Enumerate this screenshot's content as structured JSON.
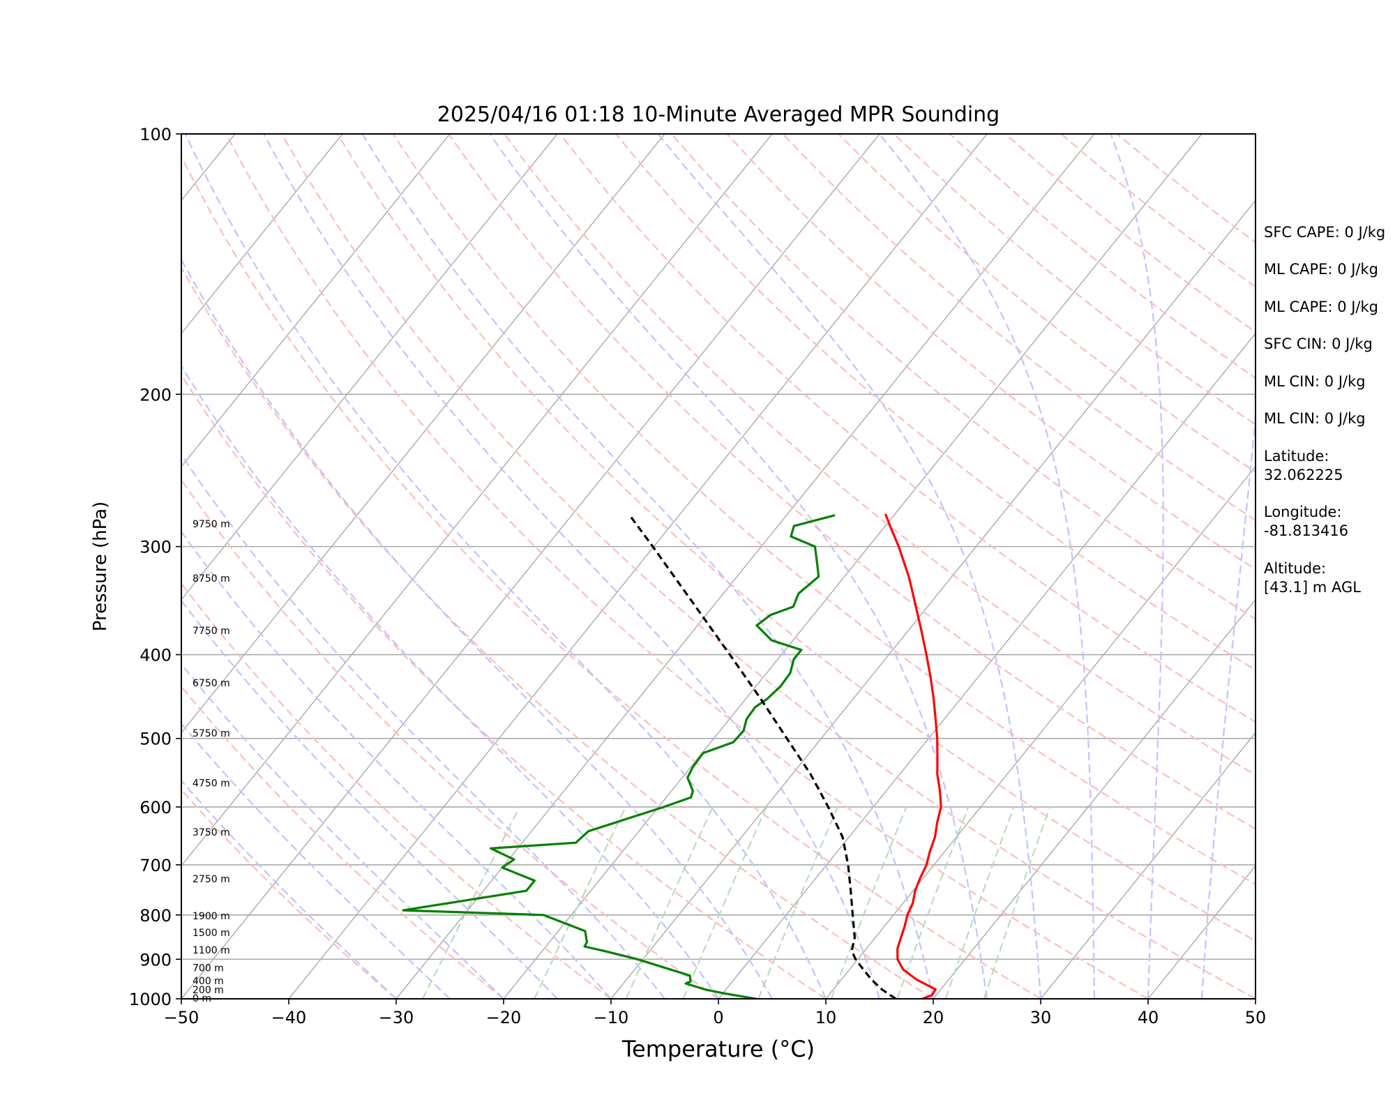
{
  "chart_data": {
    "type": "line",
    "title": "2025/04/16 01:18 10-Minute Averaged MPR Sounding",
    "xlabel": "Temperature (°C)",
    "ylabel": "Pressure (hPa)",
    "xlim": [
      -50,
      50
    ],
    "ylim": [
      1000,
      100
    ],
    "y_scale": "log",
    "skew_temperature": true,
    "grid": true,
    "x_ticks": [
      "−50",
      "−40",
      "−30",
      "−20",
      "−10",
      "0",
      "10",
      "20",
      "30",
      "40",
      "50"
    ],
    "y_ticks": [
      "100",
      "200",
      "300",
      "400",
      "500",
      "600",
      "700",
      "800",
      "900",
      "1000"
    ],
    "y_tick_values": [
      100,
      200,
      300,
      400,
      500,
      600,
      700,
      800,
      900,
      1000
    ],
    "series": [
      {
        "role": "temperature",
        "color": "#ff0000",
        "style": "solid",
        "points": [
          [
            1000,
            19.0
          ],
          [
            990,
            19.6
          ],
          [
            975,
            19.5
          ],
          [
            950,
            17.0
          ],
          [
            925,
            15.0
          ],
          [
            900,
            13.7
          ],
          [
            875,
            12.9
          ],
          [
            850,
            12.4
          ],
          [
            825,
            11.9
          ],
          [
            800,
            11.3
          ],
          [
            775,
            10.9
          ],
          [
            750,
            10.2
          ],
          [
            725,
            9.7
          ],
          [
            700,
            9.3
          ],
          [
            675,
            8.6
          ],
          [
            650,
            8.0
          ],
          [
            625,
            7.1
          ],
          [
            600,
            6.3
          ],
          [
            575,
            5.0
          ],
          [
            550,
            3.5
          ],
          [
            525,
            2.2
          ],
          [
            500,
            0.8
          ],
          [
            475,
            -0.8
          ],
          [
            450,
            -2.5
          ],
          [
            425,
            -4.4
          ],
          [
            400,
            -6.5
          ],
          [
            375,
            -8.8
          ],
          [
            350,
            -11.3
          ],
          [
            325,
            -14.0
          ],
          [
            300,
            -17.2
          ],
          [
            285,
            -19.4
          ],
          [
            275,
            -20.9
          ]
        ]
      },
      {
        "role": "dewpoint",
        "color": "#008000",
        "style": "solid",
        "points": [
          [
            1000,
            3.5
          ],
          [
            985,
            0.0
          ],
          [
            975,
            -2.0
          ],
          [
            960,
            -4.2
          ],
          [
            955,
            -3.9
          ],
          [
            940,
            -4.4
          ],
          [
            900,
            -10.5
          ],
          [
            880,
            -14.3
          ],
          [
            870,
            -16.4
          ],
          [
            860,
            -16.5
          ],
          [
            835,
            -17.5
          ],
          [
            800,
            -22.6
          ],
          [
            790,
            -36.0
          ],
          [
            750,
            -26.0
          ],
          [
            730,
            -26.0
          ],
          [
            705,
            -30.0
          ],
          [
            690,
            -29.5
          ],
          [
            670,
            -32.5
          ],
          [
            660,
            -25.0
          ],
          [
            640,
            -24.7
          ],
          [
            600,
            -19.5
          ],
          [
            585,
            -17.7
          ],
          [
            575,
            -18.0
          ],
          [
            555,
            -19.5
          ],
          [
            540,
            -19.8
          ],
          [
            520,
            -19.9
          ],
          [
            505,
            -17.9
          ],
          [
            490,
            -17.8
          ],
          [
            475,
            -18.4
          ],
          [
            460,
            -18.5
          ],
          [
            450,
            -18.0
          ],
          [
            435,
            -17.7
          ],
          [
            420,
            -17.8
          ],
          [
            405,
            -18.5
          ],
          [
            395,
            -18.5
          ],
          [
            385,
            -22.0
          ],
          [
            370,
            -24.5
          ],
          [
            360,
            -24.0
          ],
          [
            352,
            -22.5
          ],
          [
            340,
            -23.0
          ],
          [
            325,
            -22.4
          ],
          [
            315,
            -23.4
          ],
          [
            300,
            -25.0
          ],
          [
            292,
            -28.0
          ],
          [
            284,
            -28.5
          ],
          [
            276,
            -25.5
          ]
        ]
      },
      {
        "role": "parcel",
        "color": "#000000",
        "style": "dashed",
        "points": [
          [
            1000,
            16.5
          ],
          [
            975,
            14.5
          ],
          [
            950,
            12.8
          ],
          [
            925,
            11.3
          ],
          [
            900,
            9.8
          ],
          [
            880,
            8.8
          ],
          [
            850,
            8.1
          ],
          [
            800,
            6.2
          ],
          [
            750,
            4.2
          ],
          [
            700,
            2.0
          ],
          [
            650,
            -0.6
          ],
          [
            600,
            -4.2
          ],
          [
            550,
            -8.3
          ],
          [
            500,
            -13.2
          ],
          [
            450,
            -18.6
          ],
          [
            400,
            -24.8
          ],
          [
            350,
            -31.9
          ],
          [
            300,
            -40.1
          ],
          [
            275,
            -44.8
          ]
        ]
      }
    ],
    "height_labels": [
      {
        "text": "0 m",
        "p": 1000
      },
      {
        "text": "200 m",
        "p": 978
      },
      {
        "text": "400 m",
        "p": 955
      },
      {
        "text": "700 m",
        "p": 922
      },
      {
        "text": "1100 m",
        "p": 880
      },
      {
        "text": "1500 m",
        "p": 840
      },
      {
        "text": "1900 m",
        "p": 803
      },
      {
        "text": "2750 m",
        "p": 728
      },
      {
        "text": "3750 m",
        "p": 643
      },
      {
        "text": "4750 m",
        "p": 564
      },
      {
        "text": "5750 m",
        "p": 494
      },
      {
        "text": "6750 m",
        "p": 432
      },
      {
        "text": "7750 m",
        "p": 376
      },
      {
        "text": "8750 m",
        "p": 327
      },
      {
        "text": "9750 m",
        "p": 283
      }
    ],
    "background": {
      "skew_isotherm_color": "#a9a9a9",
      "dry_adiabat_color": "#ffbcbc",
      "moist_adiabat_color": "#c2c2ff",
      "mixing_ratio_color": "#b5dab5"
    }
  },
  "info": [
    "SFC CAPE: 0 J/kg",
    "ML CAPE: 0 J/kg",
    "ML CAPE: 0 J/kg",
    "SFC CIN: 0 J/kg",
    "ML CIN: 0 J/kg",
    "ML CIN: 0 J/kg",
    "Latitude:",
    "32.062225",
    "Longitude:",
    "-81.813416",
    "Altitude:",
    "[43.1] m AGL"
  ]
}
